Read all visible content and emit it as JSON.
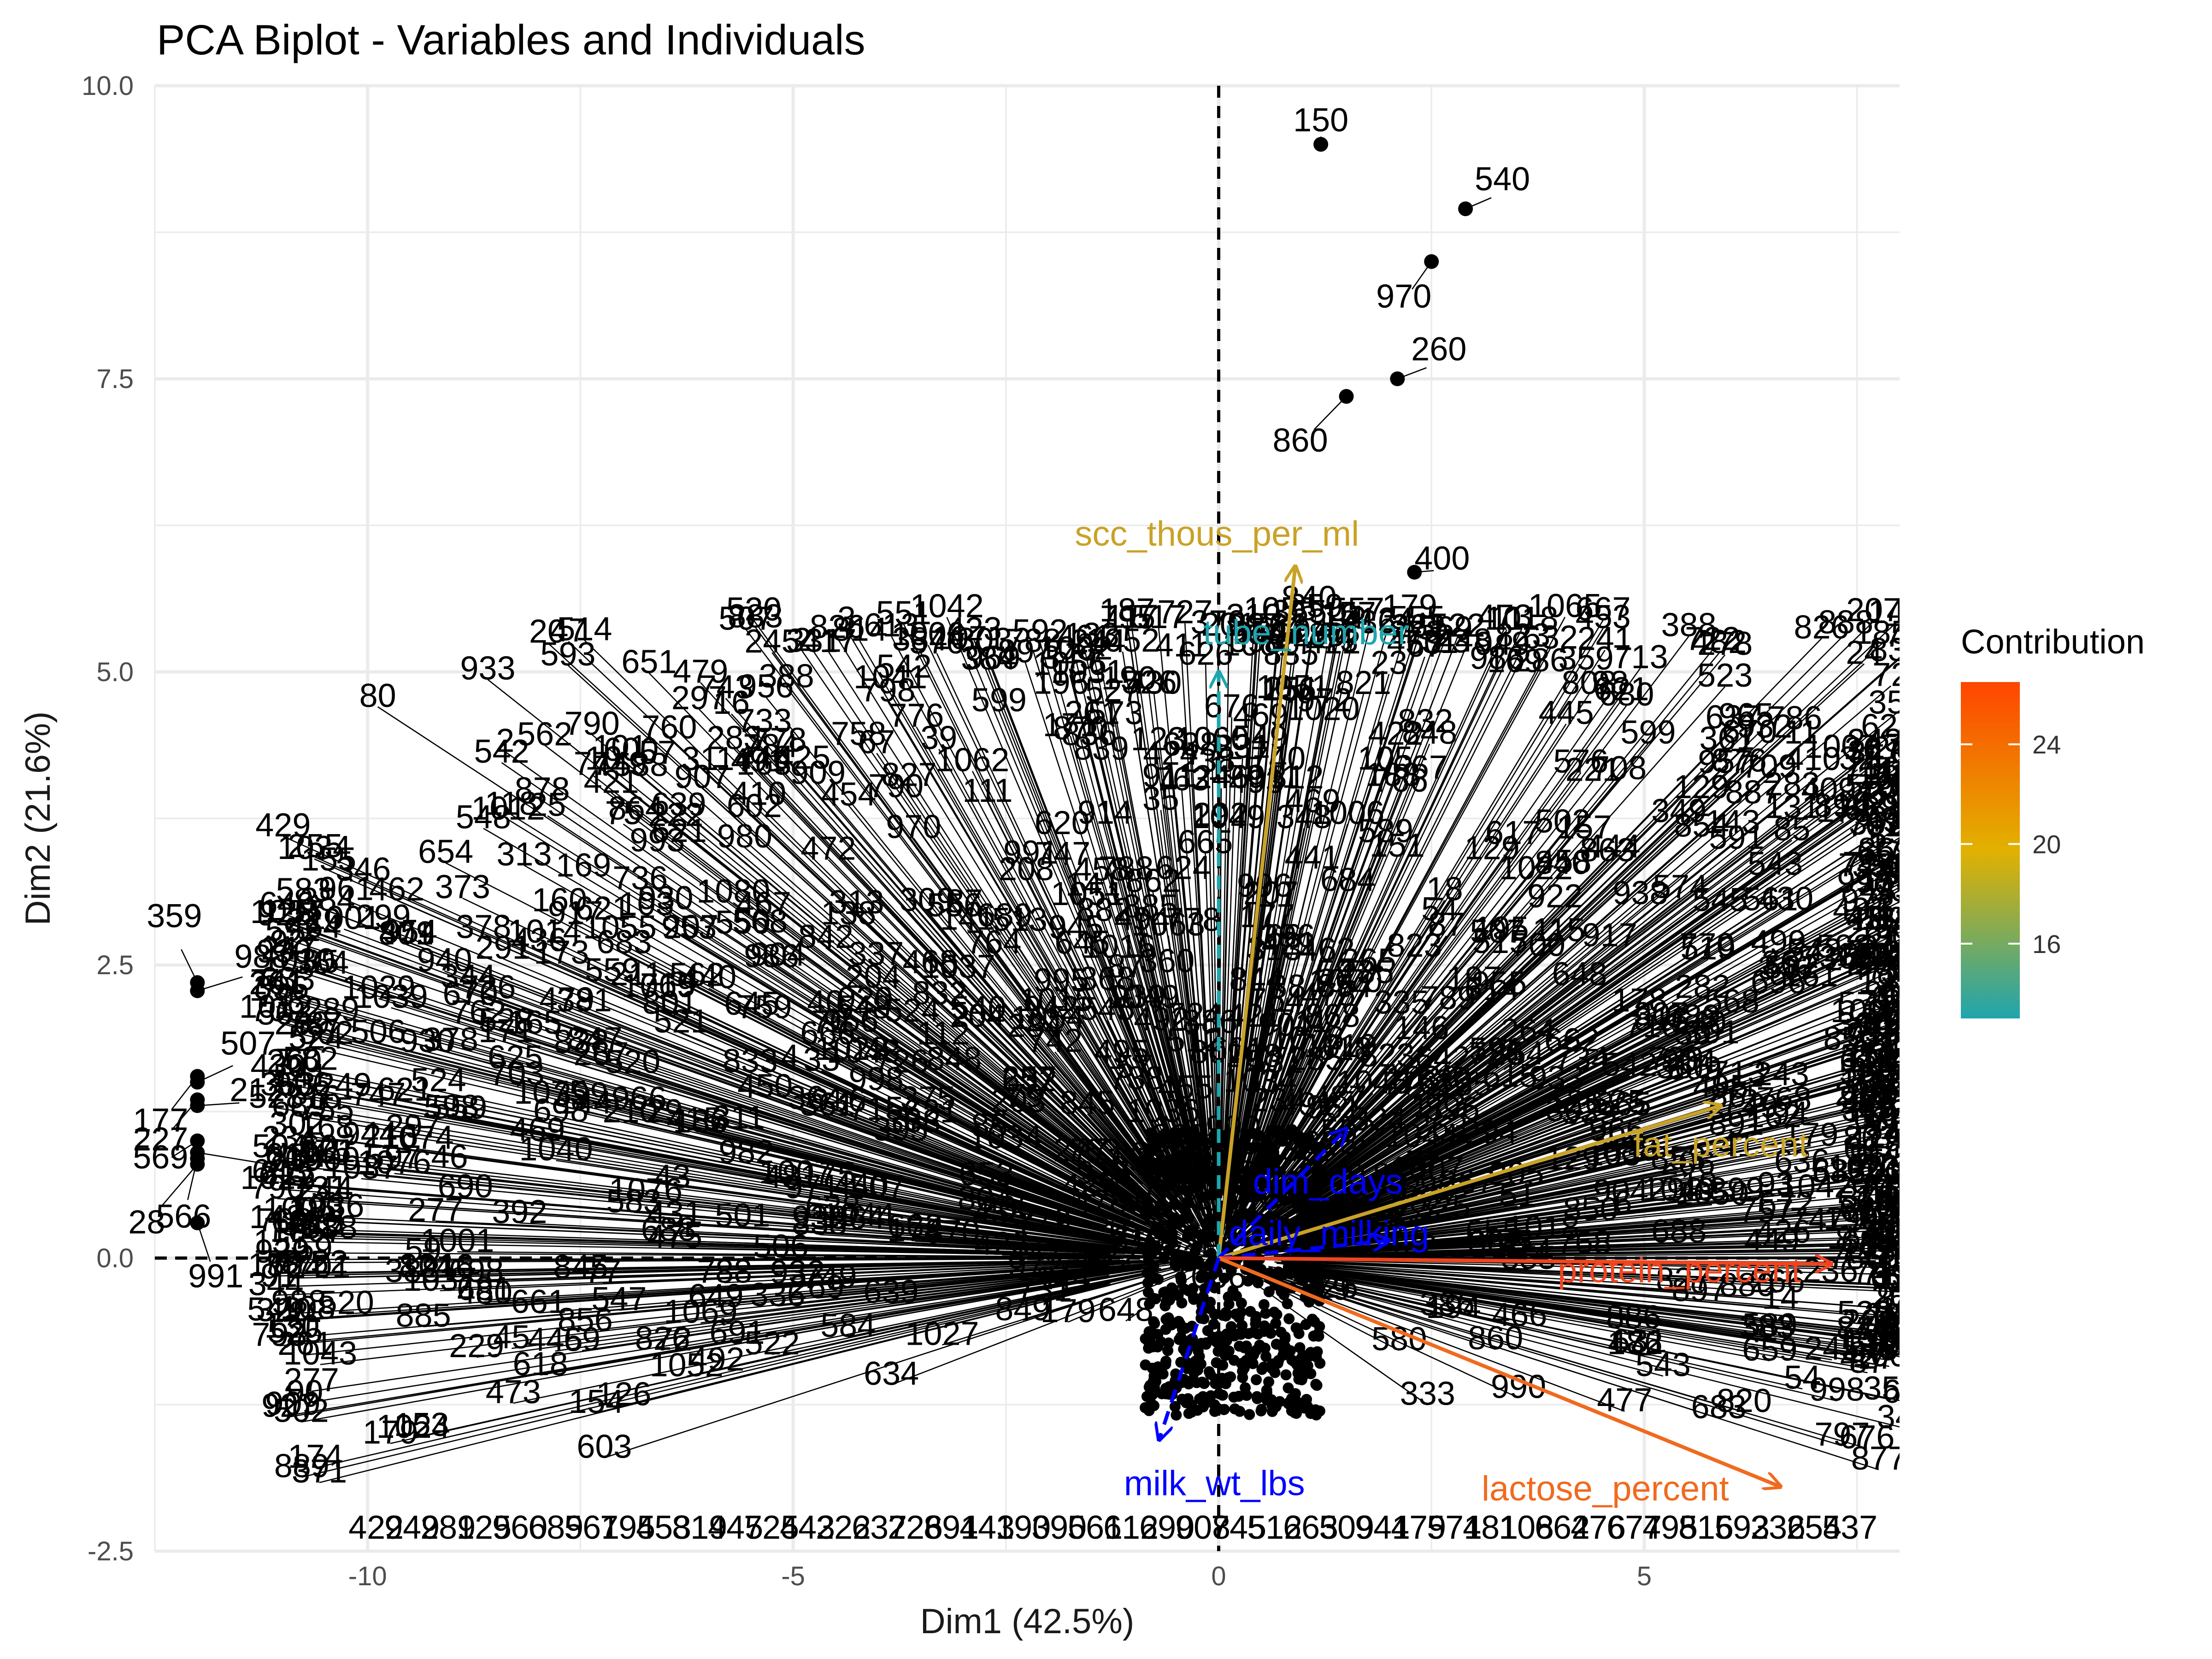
{
  "chart_data": {
    "type": "scatter",
    "title": "PCA Biplot - Variables and Individuals",
    "xlabel": "Dim1 (42.5%)",
    "ylabel": "Dim2 (21.6%)",
    "xlim": [
      -12.5,
      8.0
    ],
    "ylim": [
      -2.5,
      10.0
    ],
    "x_ticks": [
      {
        "value": -10,
        "label": "-10"
      },
      {
        "value": -5,
        "label": "-5"
      },
      {
        "value": 0,
        "label": "0"
      },
      {
        "value": 5,
        "label": "5"
      }
    ],
    "y_ticks": [
      {
        "value": -2.5,
        "label": "-2.5"
      },
      {
        "value": 0.0,
        "label": "0.0"
      },
      {
        "value": 2.5,
        "label": "2.5"
      },
      {
        "value": 5.0,
        "label": "5.0"
      },
      {
        "value": 7.5,
        "label": "7.5"
      },
      {
        "value": 10.0,
        "label": "10.0"
      }
    ],
    "grid": true,
    "reference_lines": {
      "x": 0,
      "y": 0,
      "style": "dashed"
    },
    "labeled_individuals": [
      {
        "label": "150",
        "x": 1.2,
        "y": 9.5
      },
      {
        "label": "540",
        "x": 2.9,
        "y": 8.95
      },
      {
        "label": "970",
        "x": 2.5,
        "y": 8.5
      },
      {
        "label": "260",
        "x": 2.1,
        "y": 7.5
      },
      {
        "label": "860",
        "x": 1.5,
        "y": 7.35
      },
      {
        "label": "400",
        "x": 2.3,
        "y": 5.85
      },
      {
        "label": "840",
        "x": 0.9,
        "y": 5.3
      },
      {
        "label": "359",
        "x": -12.0,
        "y": 2.35
      },
      {
        "label": "988",
        "x": -12.0,
        "y": 2.28
      },
      {
        "label": "177",
        "x": -12.0,
        "y": 1.55
      },
      {
        "label": "507",
        "x": -12.0,
        "y": 1.5
      },
      {
        "label": "227",
        "x": -12.0,
        "y": 1.35
      },
      {
        "label": "212",
        "x": -12.0,
        "y": 1.3
      },
      {
        "label": "569",
        "x": -12.0,
        "y": 1.0
      },
      {
        "label": "209",
        "x": -12.0,
        "y": 0.9
      },
      {
        "label": "566",
        "x": -12.0,
        "y": 0.85
      },
      {
        "label": "28",
        "x": -12.0,
        "y": 0.8
      },
      {
        "label": "991",
        "x": -12.0,
        "y": 0.3
      }
    ],
    "variables": [
      {
        "name": "scc_thous_per_ml",
        "x": 0.9,
        "y": 5.9,
        "color": "#C9A227",
        "contribution": 19.5,
        "linetype": "solid"
      },
      {
        "name": "tube_number",
        "x": 0.0,
        "y": 5.0,
        "color": "#1FA5AE",
        "contribution": 13.5,
        "linetype": "dashed"
      },
      {
        "name": "fat_percent",
        "x": 5.9,
        "y": 1.3,
        "color": "#C9A227",
        "contribution": 19.0,
        "linetype": "solid"
      },
      {
        "name": "dim_days",
        "x": 1.5,
        "y": 1.1,
        "color": "#0000FF",
        "contribution": null,
        "linetype": "dashed"
      },
      {
        "name": "daily_milking",
        "x": 2.0,
        "y": 0.15,
        "color": "#0000FF",
        "contribution": null,
        "linetype": "dashed"
      },
      {
        "name": "protein_percent",
        "x": 7.2,
        "y": -0.05,
        "color": "#F0451E",
        "contribution": 25.5,
        "linetype": "solid"
      },
      {
        "name": "lactose_percent",
        "x": 6.6,
        "y": -1.95,
        "color": "#F06A1E",
        "contribution": 23.5,
        "linetype": "solid"
      },
      {
        "name": "milk_wt_lbs",
        "x": -0.7,
        "y": -1.55,
        "color": "#0000FF",
        "contribution": null,
        "linetype": "dashed"
      }
    ],
    "legend": {
      "title": "Contribution",
      "position": "right",
      "range": [
        13.0,
        26.5
      ],
      "ticks": [
        {
          "value": 16,
          "label": "16"
        },
        {
          "value": 20,
          "label": "20"
        },
        {
          "value": 24,
          "label": "24"
        }
      ],
      "colors": [
        "#1FA5AE",
        "#E2B100",
        "#FF4500"
      ]
    }
  }
}
